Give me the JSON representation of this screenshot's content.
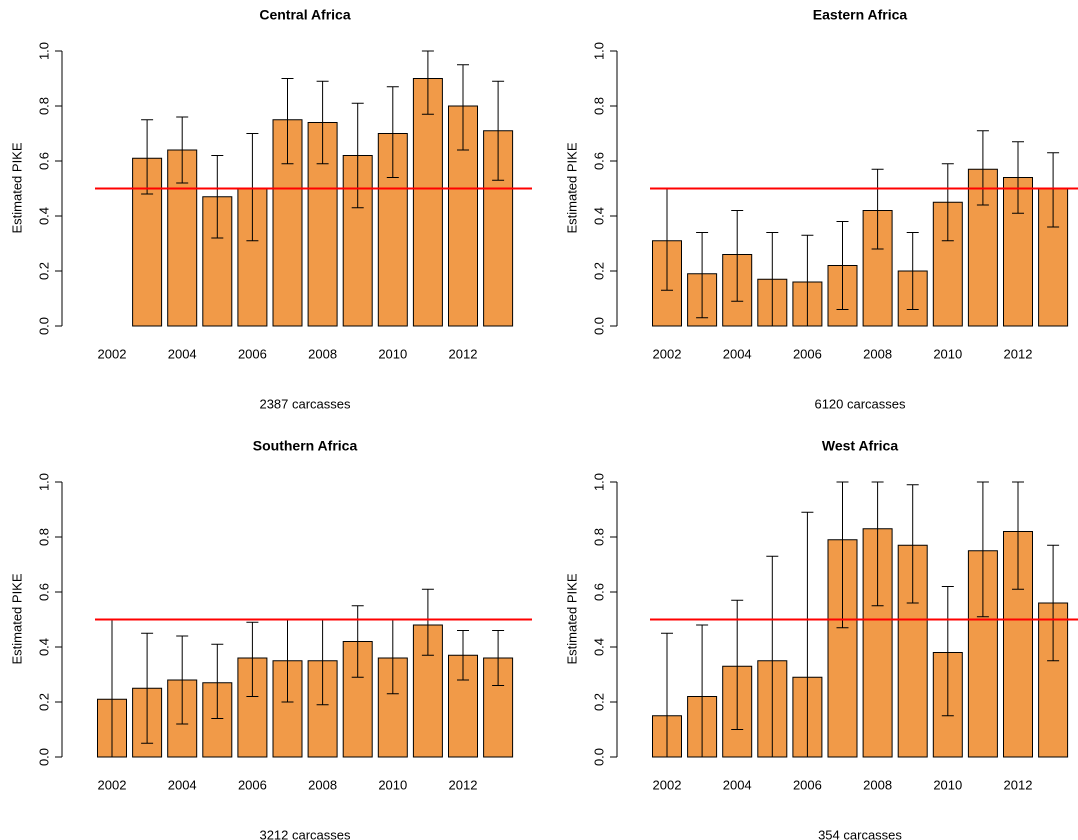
{
  "chart_data": [
    {
      "type": "bar",
      "title": "Central Africa",
      "xlabel": "2387 carcasses",
      "ylabel": "Estimated PIKE",
      "categories": [
        2002,
        null,
        2004,
        null,
        2006,
        null,
        2008,
        null,
        2010,
        null,
        2012,
        null
      ],
      "values": [
        null,
        0.61,
        0.64,
        0.47,
        0.5,
        0.75,
        0.74,
        0.62,
        0.7,
        0.9,
        0.8,
        0.71
      ],
      "lower": [
        null,
        0.48,
        0.52,
        0.32,
        0.31,
        0.59,
        0.59,
        0.43,
        0.54,
        0.77,
        0.64,
        0.53
      ],
      "upper": [
        null,
        0.75,
        0.76,
        0.62,
        0.7,
        0.9,
        0.89,
        0.81,
        0.87,
        1.0,
        0.95,
        0.89
      ],
      "color": "#f19a48",
      "reference_line": 0.5,
      "reference_color": "#ff0000",
      "ylim": [
        0,
        1
      ],
      "yticks": [
        {
          "value": 0,
          "label": "0.0"
        },
        0.2,
        0.4,
        0.6,
        0.8,
        {
          "value": 1,
          "label": "1.0"
        }
      ]
    },
    {
      "type": "bar",
      "title": "Eastern Africa",
      "xlabel": "6120 carcasses",
      "ylabel": "Estimated PIKE",
      "categories": [
        2002,
        null,
        2004,
        null,
        2006,
        null,
        2008,
        null,
        2010,
        null,
        2012,
        null
      ],
      "values": [
        0.31,
        0.19,
        0.26,
        0.17,
        0.16,
        0.22,
        0.42,
        0.2,
        0.45,
        0.57,
        0.54,
        0.5
      ],
      "lower": [
        0.13,
        0.03,
        0.09,
        0.0,
        0.0,
        0.06,
        0.28,
        0.06,
        0.31,
        0.44,
        0.41,
        0.36
      ],
      "upper": [
        0.5,
        0.34,
        0.42,
        0.34,
        0.33,
        0.38,
        0.57,
        0.34,
        0.59,
        0.71,
        0.67,
        0.63
      ],
      "color": "#f19a48",
      "reference_line": 0.5,
      "reference_color": "#ff0000",
      "ylim": [
        0,
        1
      ],
      "yticks": [
        {
          "value": 0,
          "label": "0.0"
        },
        0.2,
        0.4,
        0.6,
        0.8,
        {
          "value": 1,
          "label": "1.0"
        }
      ]
    },
    {
      "type": "bar",
      "title": "Southern Africa",
      "xlabel": "3212 carcasses",
      "ylabel": "Estimated PIKE",
      "categories": [
        2002,
        null,
        2004,
        null,
        2006,
        null,
        2008,
        null,
        2010,
        null,
        2012,
        null
      ],
      "values": [
        0.21,
        0.25,
        0.28,
        0.27,
        0.36,
        0.35,
        0.35,
        0.42,
        0.36,
        0.48,
        0.37,
        0.36
      ],
      "lower": [
        0.0,
        0.05,
        0.12,
        0.14,
        0.22,
        0.2,
        0.19,
        0.29,
        0.23,
        0.37,
        0.28,
        0.26
      ],
      "upper": [
        0.5,
        0.45,
        0.44,
        0.41,
        0.49,
        0.5,
        0.5,
        0.55,
        0.5,
        0.61,
        0.46,
        0.46
      ],
      "color": "#f19a48",
      "reference_line": 0.5,
      "reference_color": "#ff0000",
      "ylim": [
        0,
        1
      ],
      "yticks": [
        {
          "value": 0,
          "label": "0.0"
        },
        0.2,
        0.4,
        0.6,
        0.8,
        {
          "value": 1,
          "label": "1.0"
        }
      ]
    },
    {
      "type": "bar",
      "title": "West Africa",
      "xlabel": "354 carcasses",
      "ylabel": "Estimated PIKE",
      "categories": [
        2002,
        null,
        2004,
        null,
        2006,
        null,
        2008,
        null,
        2010,
        null,
        2012,
        null
      ],
      "values": [
        0.15,
        0.22,
        0.33,
        0.35,
        0.29,
        0.79,
        0.83,
        0.77,
        0.38,
        0.75,
        0.82,
        0.56
      ],
      "lower": [
        0.0,
        0.0,
        0.1,
        0.0,
        0.0,
        0.47,
        0.55,
        0.56,
        0.15,
        0.51,
        0.61,
        0.35
      ],
      "upper": [
        0.45,
        0.48,
        0.57,
        0.73,
        0.89,
        1.0,
        1.0,
        0.99,
        0.62,
        1.0,
        1.0,
        0.77
      ],
      "color": "#f19a48",
      "reference_line": 0.5,
      "reference_color": "#ff0000",
      "ylim": [
        0,
        1
      ],
      "yticks": [
        {
          "value": 0,
          "label": "0.0"
        },
        0.2,
        0.4,
        0.6,
        0.8,
        {
          "value": 1,
          "label": "1.0"
        }
      ]
    }
  ]
}
